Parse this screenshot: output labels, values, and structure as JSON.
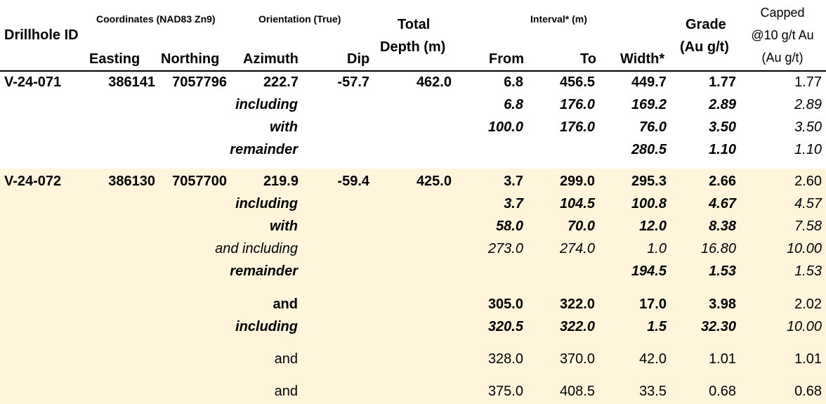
{
  "header": {
    "drillhole_id": "Drillhole ID",
    "coordinates_group": "Coordinates (NAD83 Zn9)",
    "easting": "Easting",
    "northing": "Northing",
    "orientation_group": "Orientation (True)",
    "azimuth": "Azimuth",
    "dip": "Dip",
    "total_line1": "Total",
    "total_line2": "Depth (m)",
    "interval_group": "Interval* (m)",
    "from": "From",
    "to": "To",
    "width": "Width*",
    "grade_line1": "Grade",
    "grade_line2": "(Au g/t)",
    "capped_line1": "Capped",
    "capped_line2": "@10 g/t Au",
    "capped_line3": "(Au g/t)"
  },
  "rows": [
    {
      "id": "V-24-071",
      "easting": "386141",
      "northing": "7057796",
      "azimuth": "222.7",
      "dip": "-57.7",
      "depth": "462.0",
      "label": "",
      "from": "6.8",
      "to": "456.5",
      "width": "449.7",
      "grade": "1.77",
      "capped": "1.77"
    },
    {
      "id": "",
      "easting": "",
      "northing": "",
      "azimuth": "",
      "dip": "",
      "depth": "",
      "label": "including",
      "from": "6.8",
      "to": "176.0",
      "width": "169.2",
      "grade": "2.89",
      "capped": "2.89"
    },
    {
      "id": "",
      "easting": "",
      "northing": "",
      "azimuth": "",
      "dip": "",
      "depth": "",
      "label": "with",
      "from": "100.0",
      "to": "176.0",
      "width": "76.0",
      "grade": "3.50",
      "capped": "3.50"
    },
    {
      "id": "",
      "easting": "",
      "northing": "",
      "azimuth": "",
      "dip": "",
      "depth": "",
      "label": "remainder",
      "from": "",
      "to": "",
      "width": "280.5",
      "grade": "1.10",
      "capped": "1.10"
    },
    {
      "id": "V-24-072",
      "easting": "386130",
      "northing": "7057700",
      "azimuth": "219.9",
      "dip": "-59.4",
      "depth": "425.0",
      "label": "",
      "from": "3.7",
      "to": "299.0",
      "width": "295.3",
      "grade": "2.66",
      "capped": "2.60"
    },
    {
      "id": "",
      "easting": "",
      "northing": "",
      "azimuth": "",
      "dip": "",
      "depth": "",
      "label": "including",
      "from": "3.7",
      "to": "104.5",
      "width": "100.8",
      "grade": "4.67",
      "capped": "4.57"
    },
    {
      "id": "",
      "easting": "",
      "northing": "",
      "azimuth": "",
      "dip": "",
      "depth": "",
      "label": "with",
      "from": "58.0",
      "to": "70.0",
      "width": "12.0",
      "grade": "8.38",
      "capped": "7.58"
    },
    {
      "id": "",
      "easting": "",
      "northing": "",
      "azimuth": "",
      "dip": "",
      "depth": "",
      "label": "and including",
      "from": "273.0",
      "to": "274.0",
      "width": "1.0",
      "grade": "16.80",
      "capped": "10.00"
    },
    {
      "id": "",
      "easting": "",
      "northing": "",
      "azimuth": "",
      "dip": "",
      "depth": "",
      "label": "remainder",
      "from": "",
      "to": "",
      "width": "194.5",
      "grade": "1.53",
      "capped": "1.53"
    },
    {
      "id": "",
      "easting": "",
      "northing": "",
      "azimuth": "",
      "dip": "",
      "depth": "",
      "label": "and",
      "from": "305.0",
      "to": "322.0",
      "width": "17.0",
      "grade": "3.98",
      "capped": "2.02"
    },
    {
      "id": "",
      "easting": "",
      "northing": "",
      "azimuth": "",
      "dip": "",
      "depth": "",
      "label": "including",
      "from": "320.5",
      "to": "322.0",
      "width": "1.5",
      "grade": "32.30",
      "capped": "10.00"
    },
    {
      "id": "",
      "easting": "",
      "northing": "",
      "azimuth": "",
      "dip": "",
      "depth": "",
      "label": "and",
      "from": "328.0",
      "to": "370.0",
      "width": "42.0",
      "grade": "1.01",
      "capped": "1.01"
    },
    {
      "id": "",
      "easting": "",
      "northing": "",
      "azimuth": "",
      "dip": "",
      "depth": "",
      "label": "and",
      "from": "375.0",
      "to": "408.5",
      "width": "33.5",
      "grade": "0.68",
      "capped": "0.68"
    }
  ]
}
